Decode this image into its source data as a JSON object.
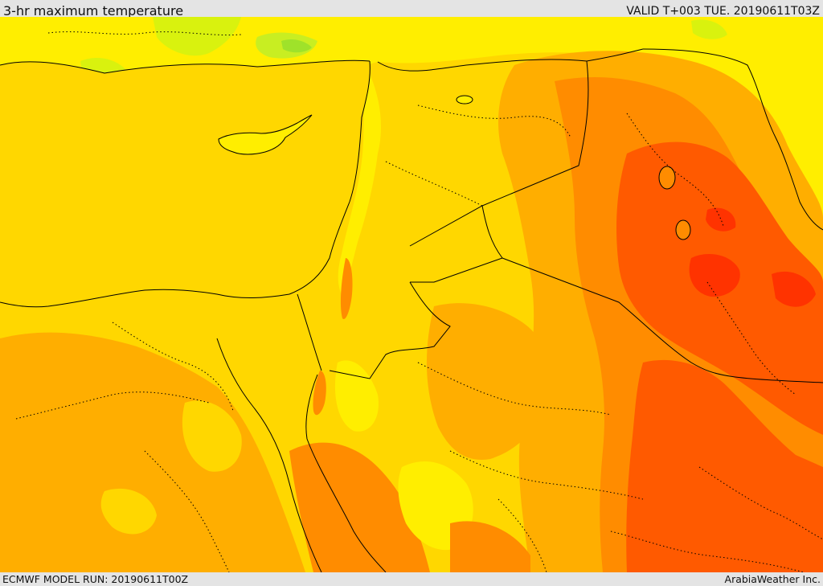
{
  "header": {
    "title": "3-hr maximum temperature",
    "valid_time": "VALID T+003 TUE. 20190611T03Z"
  },
  "footer": {
    "model_run": "ECMWF MODEL RUN: 20190611T00Z",
    "credit": "ArabiaWeather Inc."
  },
  "colors": {
    "green": "#9fe22a",
    "yellow_green": "#d9f20e",
    "yellow": "#ffee00",
    "gold": "#ffd700",
    "orange_light": "#ffae00",
    "orange": "#ff8c00",
    "orange_red": "#ff5a00",
    "red": "#ff3300",
    "border_line": "#000000"
  }
}
